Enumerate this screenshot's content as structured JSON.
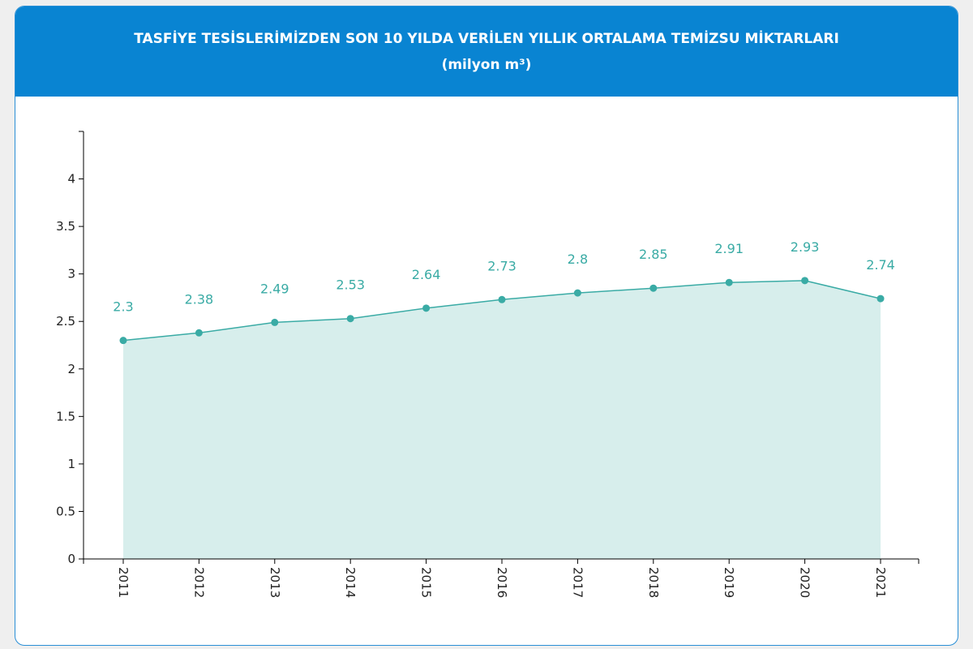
{
  "chart_data": {
    "type": "area",
    "title": "TASFİYE TESİSLERİMİZDEN SON 10 YILDA VERİLEN YILLIK ORTALAMA TEMİZSU MİKTARLARI",
    "subtitle": "(milyon m³)",
    "categories": [
      "2011",
      "2012",
      "2013",
      "2014",
      "2015",
      "2016",
      "2017",
      "2018",
      "2019",
      "2020",
      "2021"
    ],
    "values": [
      2.3,
      2.38,
      2.49,
      2.53,
      2.64,
      2.73,
      2.8,
      2.85,
      2.91,
      2.93,
      2.74
    ],
    "yticks": [
      0,
      0.5,
      1,
      1.5,
      2,
      2.5,
      3,
      3.5,
      4
    ],
    "ylim": [
      0,
      4.5
    ],
    "grid": false,
    "colors": {
      "line": "#3aaba5",
      "fill": "#d7eeec",
      "label": "#3aaba5",
      "header": "#0984d2"
    }
  }
}
